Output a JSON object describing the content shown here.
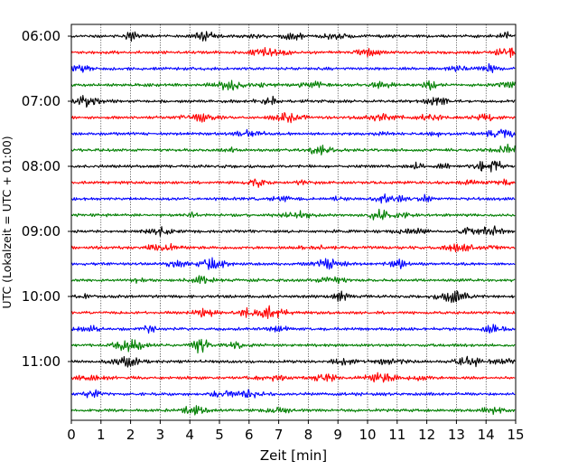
{
  "chart_data": {
    "type": "line",
    "xlabel": "Zeit  [min]",
    "ylabel": "UTC (Lokalzeit = UTC + 01:00)",
    "xlim": [
      0,
      15
    ],
    "x_ticks": [
      "0",
      "1",
      "2",
      "3",
      "4",
      "5",
      "6",
      "7",
      "8",
      "9",
      "10",
      "11",
      "12",
      "13",
      "14",
      "15"
    ],
    "y_tick_labels": [
      "06:00",
      "07:00",
      "08:00",
      "09:00",
      "10:00",
      "11:00"
    ],
    "rows_per_hour": 4,
    "row_start_times": [
      "06:00",
      "06:15",
      "06:30",
      "06:45",
      "07:00",
      "07:15",
      "07:30",
      "07:45",
      "08:00",
      "08:15",
      "08:30",
      "08:45",
      "09:00",
      "09:15",
      "09:30",
      "09:45",
      "10:00",
      "10:15",
      "10:30",
      "10:45",
      "11:00",
      "11:15",
      "11:30",
      "11:45"
    ],
    "trace_colors": [
      "#000000",
      "#ff0000",
      "#0000ff",
      "#007f00"
    ],
    "grid": "vertical dotted at each minute"
  }
}
